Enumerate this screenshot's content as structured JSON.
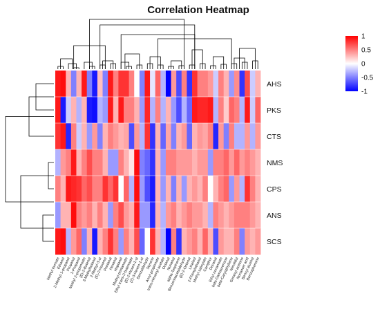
{
  "chart_data": {
    "type": "heatmap",
    "title": "Correlation Heatmap",
    "rows": [
      "AHS",
      "PKS",
      "CTS",
      "NMS",
      "CPS",
      "ANS",
      "SCS"
    ],
    "columns": [
      "Methyl formate",
      "Ethanol",
      "2-Methyl-1-propanol",
      "Propanal",
      "1-Propanol",
      "Methyl 2-propenoate",
      "(E)-2-Butenal",
      "3-Methylbutanal",
      "2-Methyl-3-ol",
      "(E)-2-Hexenal",
      "Pentanal",
      "Hexanal",
      "Heptanal",
      "Methyl pentanoate",
      "Ethyl trans-2-butenoate",
      "(E)-2-Hexen-1-ol",
      "(Z)-3-Hexen-1-ol",
      "Benzaldehyde",
      "Styrene",
      "Amyl propionate",
      "trans-Hexenyl acetate",
      "Octanal",
      "Nonanal",
      "alpha-Terpinene",
      "Benzeneacetaldehyde",
      "(E)-2-Octenal",
      "Linalool",
      "2-Phenylethanol",
      "Methyl salicylate",
      "Camphor",
      "Decanal",
      "Ethyl nonanoate",
      "beta-Damascenone",
      "beta-Caryophyllene",
      "Nerolidol",
      "Geranyl acetone",
      "Nonanoic acid",
      "Benzyl alcohol",
      "Benzophenone"
    ],
    "values": [
      [
        0.9,
        0.95,
        0.3,
        -0.5,
        0.3,
        0.9,
        -0.5,
        -0.9,
        0.25,
        -0.5,
        0.9,
        0.5,
        0.8,
        0.8,
        0.5,
        0.0,
        -0.5,
        0.9,
        -0.1,
        0.6,
        -0.3,
        -1.0,
        0.4,
        -0.7,
        0.5,
        -0.8,
        0.8,
        0.5,
        0.5,
        0.4,
        -0.2,
        0.5,
        0.3,
        -0.4,
        0.45,
        -0.8,
        0.7,
        -0.2,
        0.3
      ],
      [
        0.9,
        -0.9,
        -0.2,
        0.3,
        -0.3,
        0.3,
        -0.9,
        -0.95,
        -0.3,
        -0.4,
        0.9,
        0.3,
        0.9,
        0.5,
        0.5,
        0.3,
        -0.4,
        0.85,
        -0.3,
        0.5,
        -0.3,
        0.3,
        -0.4,
        -0.7,
        -0.3,
        -0.6,
        0.9,
        0.85,
        0.85,
        0.9,
        -0.3,
        0.5,
        0.2,
        0.6,
        0.5,
        -0.3,
        0.9,
        -0.2,
        0.6
      ],
      [
        0.8,
        0.9,
        -0.85,
        0.5,
        -0.2,
        0.3,
        -0.4,
        0.4,
        -0.5,
        0.3,
        0.5,
        0.4,
        0.3,
        0.35,
        -0.7,
        0.4,
        -0.3,
        0.8,
        -0.8,
        0.3,
        -0.6,
        0.35,
        -0.5,
        0.3,
        0.4,
        -0.6,
        0.3,
        0.4,
        0.35,
        0.5,
        -0.85,
        0.4,
        -0.5,
        0.5,
        -0.3,
        -0.3,
        0.4,
        -0.3,
        0.4
      ],
      [
        -0.3,
        0.4,
        0.5,
        0.9,
        0.3,
        0.5,
        0.7,
        0.5,
        0.5,
        0.3,
        -0.4,
        -0.4,
        0.5,
        0.3,
        0.1,
        0.95,
        -0.5,
        -0.6,
        -0.8,
        0.3,
        -0.4,
        0.5,
        0.5,
        0.4,
        0.4,
        0.4,
        0.3,
        0.4,
        0.4,
        -0.4,
        0.5,
        0.5,
        0.6,
        0.4,
        0.6,
        0.4,
        0.5,
        0.4,
        0.3
      ],
      [
        0.5,
        0.3,
        0.9,
        0.85,
        0.8,
        0.6,
        0.7,
        0.5,
        0.5,
        0.8,
        0.6,
        0.8,
        0.0,
        0.6,
        -0.3,
        0.95,
        -0.4,
        -0.7,
        -0.9,
        0.3,
        -0.4,
        0.3,
        -0.5,
        0.3,
        -0.4,
        0.3,
        0.4,
        0.3,
        0.5,
        0.0,
        0.3,
        0.5,
        0.6,
        -0.4,
        0.4,
        -0.3,
        0.8,
        0.5,
        0.3
      ],
      [
        -0.4,
        0.3,
        0.3,
        0.95,
        0.5,
        0.4,
        0.5,
        0.3,
        0.5,
        0.3,
        -0.4,
        0.5,
        0.7,
        0.4,
        0.3,
        0.9,
        -0.4,
        -0.4,
        -0.85,
        0.3,
        -0.3,
        0.4,
        0.5,
        0.3,
        0.4,
        0.5,
        0.4,
        0.4,
        0.3,
        -0.3,
        0.5,
        0.4,
        0.3,
        0.4,
        0.5,
        0.5,
        0.5,
        0.4,
        0.3
      ],
      [
        0.9,
        0.95,
        -0.3,
        0.4,
        0.6,
        -0.5,
        0.3,
        -0.9,
        0.3,
        0.5,
        0.8,
        0.5,
        -0.4,
        0.5,
        0.3,
        0.7,
        -0.6,
        0.0,
        0.8,
        0.3,
        -0.3,
        -1.0,
        0.5,
        -0.8,
        0.3,
        0.4,
        0.5,
        0.3,
        0.6,
        0.3,
        -0.7,
        0.4,
        0.3,
        0.3,
        0.5,
        -0.5,
        0.4,
        0.3,
        0.4
      ]
    ],
    "scale": {
      "min": -1,
      "max": 1,
      "colors": [
        "#0000ff",
        "#ffffff",
        "#ff0000"
      ],
      "ticks": [
        1,
        0.5,
        0,
        -0.5,
        -1
      ]
    },
    "row_dendrogram": true,
    "column_dendrogram": true,
    "legend": "top-right"
  }
}
